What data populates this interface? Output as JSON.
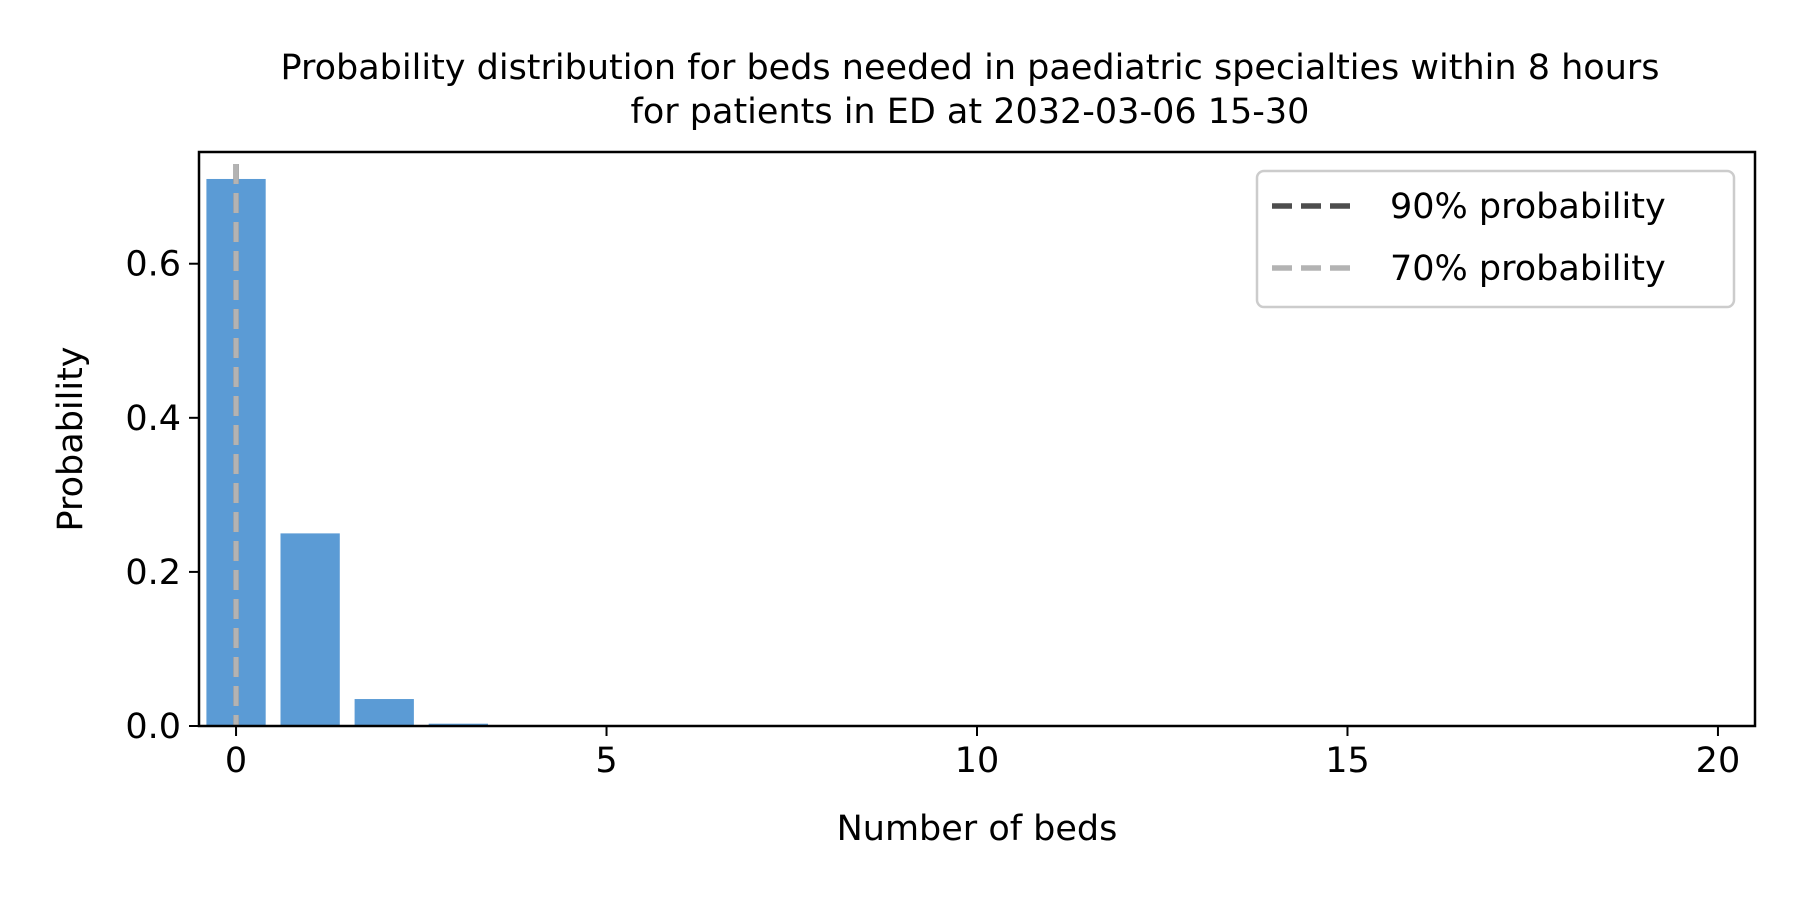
{
  "chart_data": {
    "type": "bar",
    "title_line1": "Probability distribution for beds needed in paediatric specialties within 8 hours",
    "title_line2": "for patients in ED at 2032-03-06 15-30",
    "xlabel": "Number of beds",
    "ylabel": "Probability",
    "xlim": [
      -0.5,
      20.5
    ],
    "ylim": [
      0,
      0.745
    ],
    "xticks": [
      0,
      5,
      10,
      15,
      20
    ],
    "yticks": [
      0.0,
      0.2,
      0.4,
      0.6
    ],
    "ytick_labels": [
      "0.0",
      "0.2",
      "0.4",
      "0.6"
    ],
    "bar_color": "#5b9bd5",
    "x": [
      0,
      1,
      2,
      3,
      4,
      5,
      6,
      7,
      8,
      9,
      10,
      11,
      12,
      13,
      14,
      15,
      16,
      17,
      18,
      19,
      20
    ],
    "values": [
      0.71,
      0.25,
      0.035,
      0.003,
      0.0002,
      0,
      0,
      0,
      0,
      0,
      0,
      0,
      0,
      0,
      0,
      0,
      0,
      0,
      0,
      0,
      0
    ],
    "reference_lines": [
      {
        "label": "90% probability",
        "x": 0,
        "color": "#4d4d4d"
      },
      {
        "label": "70% probability",
        "x": 0,
        "color": "#b3b3b3"
      }
    ],
    "legend": {
      "placement": "top-right",
      "entries": [
        "90% probability",
        "70% probability"
      ]
    },
    "grid": false
  }
}
